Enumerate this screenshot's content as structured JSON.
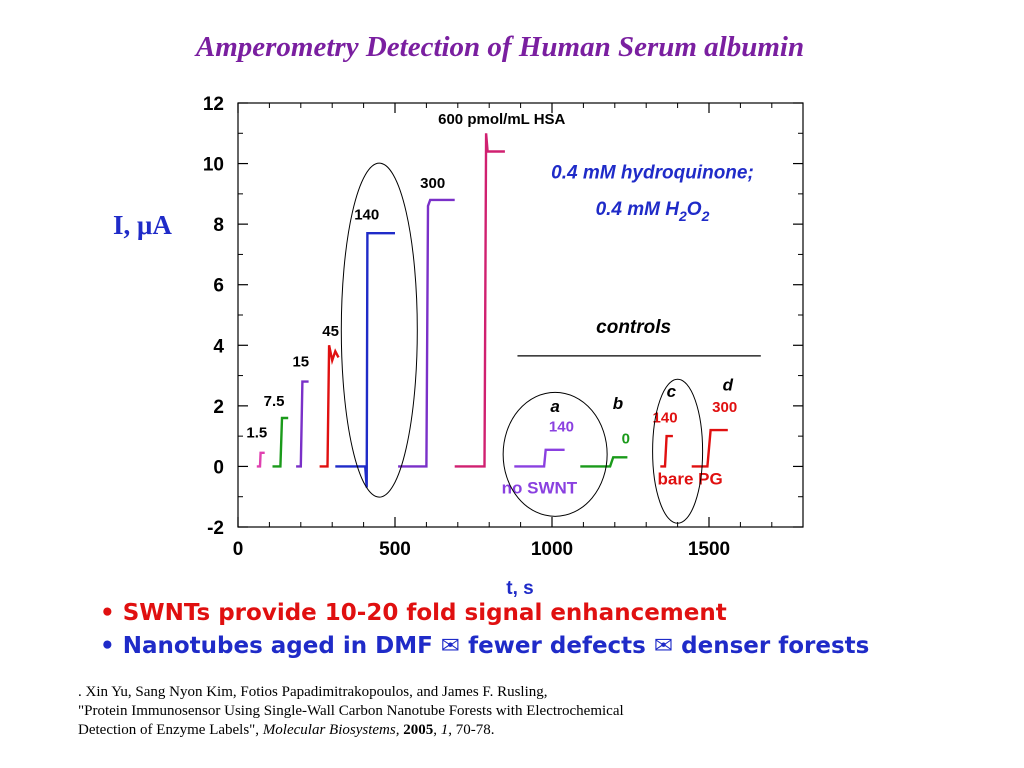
{
  "title": "Amperometry Detection of Human Serum albumin",
  "y_axis_label": "I, μA",
  "bullets": [
    "• SWNTs provide 10-20 fold signal enhancement",
    "• Nanotubes aged in DMF ✉ fewer defects ✉ denser forests"
  ],
  "reference": {
    "authors": ". Xin Yu, Sang Nyon Kim, Fotios Papadimitrakopoulos, and James F. Rusling,",
    "title_line": "\"Protein Immunosensor Using Single-Wall Carbon Nanotube Forests with Electrochemical",
    "line3_pre": "Detection of Enzyme Labels\",",
    "journal": "Molecular Biosystems,",
    "year": "2005",
    "volume": "1",
    "pages": ", 70-78."
  },
  "colors": {
    "title": "#7a1fa0",
    "blue": "#1f2bc8",
    "red": "#e01010"
  },
  "chart_data": {
    "type": "line",
    "xlabel": "t, s",
    "ylabel": "I, μA",
    "xlim": [
      0,
      1800
    ],
    "ylim": [
      -2,
      12
    ],
    "xticks": [
      "0",
      "500",
      "1000",
      "1500"
    ],
    "yticks": [
      "-2",
      "0",
      "2",
      "4",
      "6",
      "8",
      "10",
      "12"
    ],
    "grid": false,
    "series": [
      {
        "name": "1.5",
        "color": "#e040b0",
        "points": [
          [
            60,
            0
          ],
          [
            70,
            0
          ],
          [
            72,
            0.45
          ],
          [
            85,
            0.45
          ]
        ],
        "label": "1.5",
        "label_at": [
          60,
          0.95
        ]
      },
      {
        "name": "7.5",
        "color": "#1a9a1a",
        "points": [
          [
            110,
            0
          ],
          [
            135,
            0
          ],
          [
            140,
            1.6
          ],
          [
            160,
            1.6
          ]
        ],
        "label": "7.5",
        "label_at": [
          115,
          2.0
        ]
      },
      {
        "name": "15",
        "color": "#7a30c8",
        "points": [
          [
            185,
            0
          ],
          [
            200,
            0
          ],
          [
            205,
            2.8
          ],
          [
            225,
            2.8
          ]
        ],
        "label": "15",
        "label_at": [
          200,
          3.3
        ]
      },
      {
        "name": "45",
        "color": "#e01010",
        "points": [
          [
            260,
            0
          ],
          [
            285,
            0
          ],
          [
            290,
            4.0
          ],
          [
            300,
            3.5
          ],
          [
            310,
            3.8
          ],
          [
            320,
            3.6
          ]
        ],
        "label": "45",
        "label_at": [
          295,
          4.3
        ]
      },
      {
        "name": "140",
        "color": "#1f2bc8",
        "points": [
          [
            310,
            0
          ],
          [
            405,
            0
          ],
          [
            410,
            -0.7
          ],
          [
            412,
            7.7
          ],
          [
            500,
            7.7
          ]
        ],
        "label": "140",
        "label_at": [
          410,
          8.15
        ]
      },
      {
        "name": "300",
        "color": "#7a30c8",
        "points": [
          [
            510,
            0
          ],
          [
            600,
            0
          ],
          [
            605,
            8.6
          ],
          [
            612,
            8.8
          ],
          [
            690,
            8.8
          ]
        ],
        "label": "300",
        "label_at": [
          620,
          9.2
        ]
      },
      {
        "name": "600 pmol/mL HSA",
        "color": "#d02070",
        "points": [
          [
            690,
            0
          ],
          [
            785,
            0
          ],
          [
            790,
            11.0
          ],
          [
            795,
            10.4
          ],
          [
            850,
            10.4
          ]
        ],
        "label": "600 pmol/mL HSA",
        "label_at": [
          840,
          11.3
        ]
      },
      {
        "name": "a 140",
        "color": "#8a40e0",
        "points": [
          [
            880,
            0
          ],
          [
            975,
            0
          ],
          [
            980,
            0.55
          ],
          [
            1040,
            0.55
          ]
        ],
        "label": "140",
        "label_at": [
          1030,
          1.15
        ]
      },
      {
        "name": "b 0",
        "color": "#1a9a1a",
        "points": [
          [
            1090,
            0
          ],
          [
            1185,
            0
          ],
          [
            1195,
            0.3
          ],
          [
            1240,
            0.3
          ]
        ],
        "label": "0",
        "label_at": [
          1235,
          0.75
        ]
      },
      {
        "name": "c 140",
        "color": "#e01010",
        "points": [
          [
            1345,
            0
          ],
          [
            1360,
            0
          ],
          [
            1365,
            1.0
          ],
          [
            1385,
            1.0
          ]
        ],
        "label": "140",
        "label_at": [
          1360,
          1.45
        ]
      },
      {
        "name": "d 300",
        "color": "#e01010",
        "points": [
          [
            1445,
            0
          ],
          [
            1495,
            0
          ],
          [
            1505,
            1.2
          ],
          [
            1560,
            1.2
          ]
        ],
        "label": "300",
        "label_at": [
          1550,
          1.8
        ]
      }
    ],
    "annotations": [
      {
        "text": "0.4 mM hydroquinone;",
        "color": "#1f2bc8",
        "italic": true,
        "at": [
          1320,
          9.5
        ]
      },
      {
        "text": "controls",
        "italic": true,
        "at": [
          1260,
          4.4
        ]
      },
      {
        "text": "a",
        "italic": true,
        "at": [
          1010,
          1.8
        ]
      },
      {
        "text": "b",
        "italic": true,
        "at": [
          1210,
          1.9
        ]
      },
      {
        "text": "c",
        "italic": true,
        "at": [
          1380,
          2.3
        ]
      },
      {
        "text": "d",
        "italic": true,
        "at": [
          1560,
          2.5
        ]
      },
      {
        "text": "no SWNT",
        "color": "#8a40e0",
        "at": [
          960,
          -0.9
        ]
      },
      {
        "text": "bare PG",
        "color": "#e01010",
        "at": [
          1440,
          -0.6
        ]
      }
    ],
    "formula": {
      "pre": "0.4 mM  H",
      "sub1": "2",
      "mid": "O",
      "sub2": "2",
      "color": "#1f2bc8"
    }
  }
}
